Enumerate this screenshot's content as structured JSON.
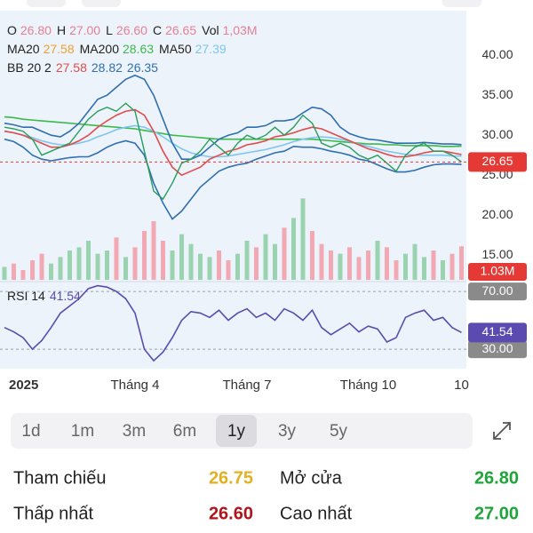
{
  "chart_data": {
    "type": "line",
    "ohlc_legend": [
      {
        "label": "O",
        "value": "26.80"
      },
      {
        "label": "H",
        "value": "27.00"
      },
      {
        "label": "L",
        "value": "26.60"
      },
      {
        "label": "C",
        "value": "26.65"
      },
      {
        "label": "Vol",
        "value": "1,03M"
      }
    ],
    "legend_value_color": "#e57f93",
    "ma_legend": [
      {
        "label": "MA20",
        "value": "27.58",
        "color": "#f0a030"
      },
      {
        "label": "MA200",
        "value": "28.63",
        "color": "#3cb94a"
      },
      {
        "label": "MA50",
        "value": "27.39",
        "color": "#7fc6ee"
      }
    ],
    "bb_legend": {
      "label": "BB 20 2",
      "values": [
        {
          "value": "27.58",
          "color": "#e04b4b"
        },
        {
          "value": "28.82",
          "color": "#2f6fb0"
        },
        {
          "value": "26.35",
          "color": "#2f6fb0"
        }
      ]
    },
    "xticks": [
      {
        "value": 0,
        "label": "2025"
      },
      {
        "value": 14,
        "label": "Tháng 4"
      },
      {
        "value": 26,
        "label": "Tháng 7"
      },
      {
        "value": 39,
        "label": "Tháng 10"
      },
      {
        "value": 49,
        "label": "10"
      }
    ],
    "ylim": [
      11.9,
      44.7
    ],
    "yticks": [
      {
        "value": 40,
        "label": "40.00"
      },
      {
        "value": 35,
        "label": "35.00"
      },
      {
        "value": 30,
        "label": "30.00"
      },
      {
        "value": 25,
        "label": "25.00"
      },
      {
        "value": 20,
        "label": "20.00"
      },
      {
        "value": 15,
        "label": "15.00"
      }
    ],
    "close": {
      "color": "#2a9d5c",
      "values": [
        31,
        30.8,
        30.5,
        29.5,
        27.5,
        28,
        28.5,
        29,
        30.5,
        32,
        33,
        33.5,
        33,
        34,
        33,
        28,
        23,
        22,
        24,
        26.5,
        27,
        28,
        29.5,
        28.5,
        27.5,
        29,
        30,
        29.5,
        30,
        31,
        30,
        31,
        32.5,
        31.5,
        29,
        28.5,
        29,
        28.5,
        27.5,
        27,
        27.5,
        26.5,
        25.5,
        27.5,
        28.5,
        29,
        28,
        28,
        27.5,
        26.65
      ]
    },
    "ma20": {
      "color": "#e04b4b",
      "values": [
        30.5,
        30.3,
        30,
        29.5,
        29,
        28.5,
        28.5,
        28.8,
        29.3,
        30,
        31,
        31.8,
        32.5,
        33,
        33.2,
        32.5,
        30.5,
        28,
        26,
        25,
        25.5,
        26,
        27,
        27.5,
        28,
        28.3,
        28.8,
        29,
        29.3,
        29.8,
        30,
        30.3,
        30.7,
        31,
        30.8,
        30.3,
        29.8,
        29.3,
        28.8,
        28.3,
        28,
        27.6,
        27.3,
        27.3,
        27.5,
        27.8,
        28,
        28,
        27.8,
        27.58
      ]
    },
    "ma200": {
      "color": "#3cb94a",
      "values": [
        32.3,
        32.2,
        32,
        31.9,
        31.8,
        31.7,
        31.6,
        31.5,
        31.4,
        31.3,
        31.2,
        31.1,
        31,
        30.9,
        30.8,
        30.6,
        30.4,
        30.2,
        30,
        29.9,
        29.8,
        29.7,
        29.6,
        29.5,
        29.5,
        29.5,
        29.5,
        29.5,
        29.5,
        29.5,
        29.5,
        29.5,
        29.5,
        29.5,
        29.4,
        29.3,
        29.2,
        29.1,
        29,
        28.9,
        28.9,
        28.8,
        28.8,
        28.7,
        28.7,
        28.7,
        28.7,
        28.6,
        28.6,
        28.63
      ]
    },
    "ma50": {
      "color": "#7fc6ee",
      "values": [
        30.5,
        30.3,
        30,
        29.7,
        29.3,
        29,
        28.8,
        28.8,
        29,
        29.3,
        29.8,
        30.2,
        30.7,
        31,
        31.2,
        31,
        30.5,
        29.8,
        29,
        28.3,
        27.8,
        27.5,
        27.3,
        27.3,
        27.4,
        27.6,
        27.8,
        28,
        28.2,
        28.5,
        28.8,
        29.2,
        29.5,
        29.7,
        29.8,
        29.7,
        29.5,
        29.2,
        28.9,
        28.6,
        28.3,
        28,
        27.8,
        27.6,
        27.5,
        27.5,
        27.5,
        27.5,
        27.4,
        27.39
      ]
    },
    "bb_upper": {
      "color": "#2f6fb0",
      "values": [
        31.5,
        31.3,
        31,
        31,
        30.5,
        30,
        29.8,
        30.5,
        31.5,
        33,
        34.5,
        35,
        36,
        37,
        37.5,
        37,
        35,
        32,
        29,
        27,
        27,
        27.5,
        28.5,
        29.5,
        30,
        30.3,
        31,
        31,
        31.2,
        31.8,
        31.8,
        32,
        32.8,
        33.5,
        33.3,
        32.5,
        31,
        30.2,
        29.8,
        29.5,
        29.4,
        29.2,
        29,
        29,
        29,
        29.1,
        29,
        28.9,
        28.9,
        28.82
      ]
    },
    "bb_lower": {
      "color": "#2f6fb0",
      "values": [
        29.5,
        29.2,
        28.5,
        27.5,
        27,
        26.8,
        27,
        27.2,
        27.3,
        27.3,
        27.8,
        28.5,
        29,
        29.3,
        29,
        27.5,
        24,
        21.5,
        19.5,
        20.5,
        22,
        23.5,
        24.5,
        25.5,
        26,
        26.3,
        26.5,
        27,
        27.4,
        27.8,
        28,
        28.6,
        28.5,
        28.5,
        28.3,
        28,
        27.8,
        27.5,
        27,
        26.8,
        26.3,
        25.8,
        25.4,
        25.4,
        25.6,
        26,
        26.3,
        26.4,
        26.4,
        26.35
      ]
    },
    "last_price": {
      "value": 26.65,
      "label": "26.65",
      "color": "#e53935"
    },
    "volume": {
      "ylim": [
        0,
        3
      ],
      "up_color": "#9ad3b0",
      "down_color": "#f2a9b4",
      "last_label": "1.03M",
      "tag_color": "#e53935",
      "values": [
        0.4,
        0.5,
        0.3,
        0.6,
        0.8,
        0.5,
        0.7,
        0.9,
        1.0,
        1.2,
        0.8,
        0.9,
        1.3,
        0.7,
        1.0,
        1.5,
        1.8,
        1.2,
        0.9,
        1.4,
        1.1,
        0.8,
        0.7,
        0.9,
        0.6,
        0.8,
        1.2,
        1.0,
        1.4,
        1.1,
        1.6,
        1.9,
        2.5,
        1.5,
        1.1,
        0.9,
        0.8,
        1.0,
        0.7,
        0.9,
        1.2,
        1.0,
        0.6,
        0.8,
        1.1,
        0.7,
        0.9,
        0.6,
        0.8,
        1.03
      ]
    },
    "rsi": {
      "label": "RSI 14",
      "value_label": "41.54",
      "color": "#5b4bb0",
      "ylim": [
        16.5,
        76.2
      ],
      "levels": [
        {
          "value": 70,
          "label": "70.00"
        },
        {
          "value": 30,
          "label": "30.00"
        }
      ],
      "values": [
        45,
        42,
        38,
        30,
        36,
        45,
        55,
        60,
        65,
        72,
        74,
        73,
        70,
        65,
        55,
        30,
        22,
        28,
        38,
        50,
        56,
        55,
        52,
        57,
        50,
        55,
        58,
        52,
        55,
        50,
        58,
        55,
        50,
        57,
        45,
        40,
        44,
        48,
        42,
        46,
        44,
        35,
        38,
        52,
        55,
        57,
        50,
        52,
        45,
        41.54
      ]
    }
  },
  "periods": {
    "options": [
      "1d",
      "1m",
      "3m",
      "6m",
      "1y",
      "3y",
      "5y"
    ],
    "selected": 4
  },
  "stats": [
    {
      "label": "Tham chiếu",
      "value": "26.75",
      "color": "#e2b021"
    },
    {
      "label": "Mở cửa",
      "value": "26.80",
      "color": "#1fa53a"
    },
    {
      "label": "Thấp nhất",
      "value": "26.60",
      "color": "#b0151c"
    },
    {
      "label": "Cao nhất",
      "value": "27.00",
      "color": "#1fa53a"
    }
  ]
}
